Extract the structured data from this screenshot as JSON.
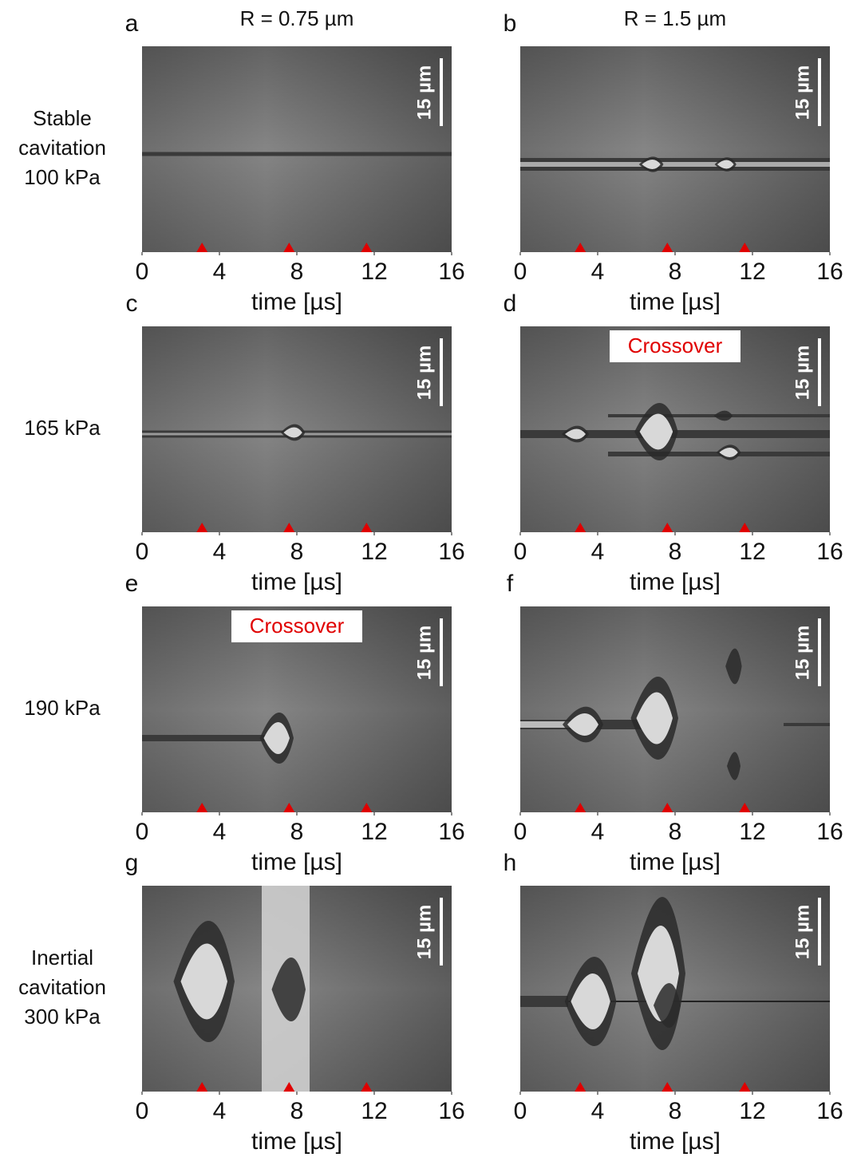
{
  "columns": [
    "R = 0.75 µm",
    "R = 1.5 µm"
  ],
  "rows": [
    {
      "label": [
        "Stable",
        "cavitation",
        "100 kPa"
      ]
    },
    {
      "label": [
        "165 kPa"
      ]
    },
    {
      "label": [
        "190 kPa"
      ]
    },
    {
      "label": [
        "Inertial",
        "cavitation",
        "300 kPa"
      ]
    }
  ],
  "panels": [
    {
      "letter": "a"
    },
    {
      "letter": "b"
    },
    {
      "letter": "c"
    },
    {
      "letter": "d",
      "annotation": "Crossover"
    },
    {
      "letter": "e",
      "annotation": "Crossover"
    },
    {
      "letter": "f"
    },
    {
      "letter": "g"
    },
    {
      "letter": "h"
    }
  ],
  "xlabel": "time [µs]",
  "xlim": [
    0,
    16
  ],
  "xticks": [
    0,
    4,
    8,
    12,
    16
  ],
  "scale_bar": "15 µm",
  "pulses": [
    3.1,
    7.6,
    11.6
  ]
}
